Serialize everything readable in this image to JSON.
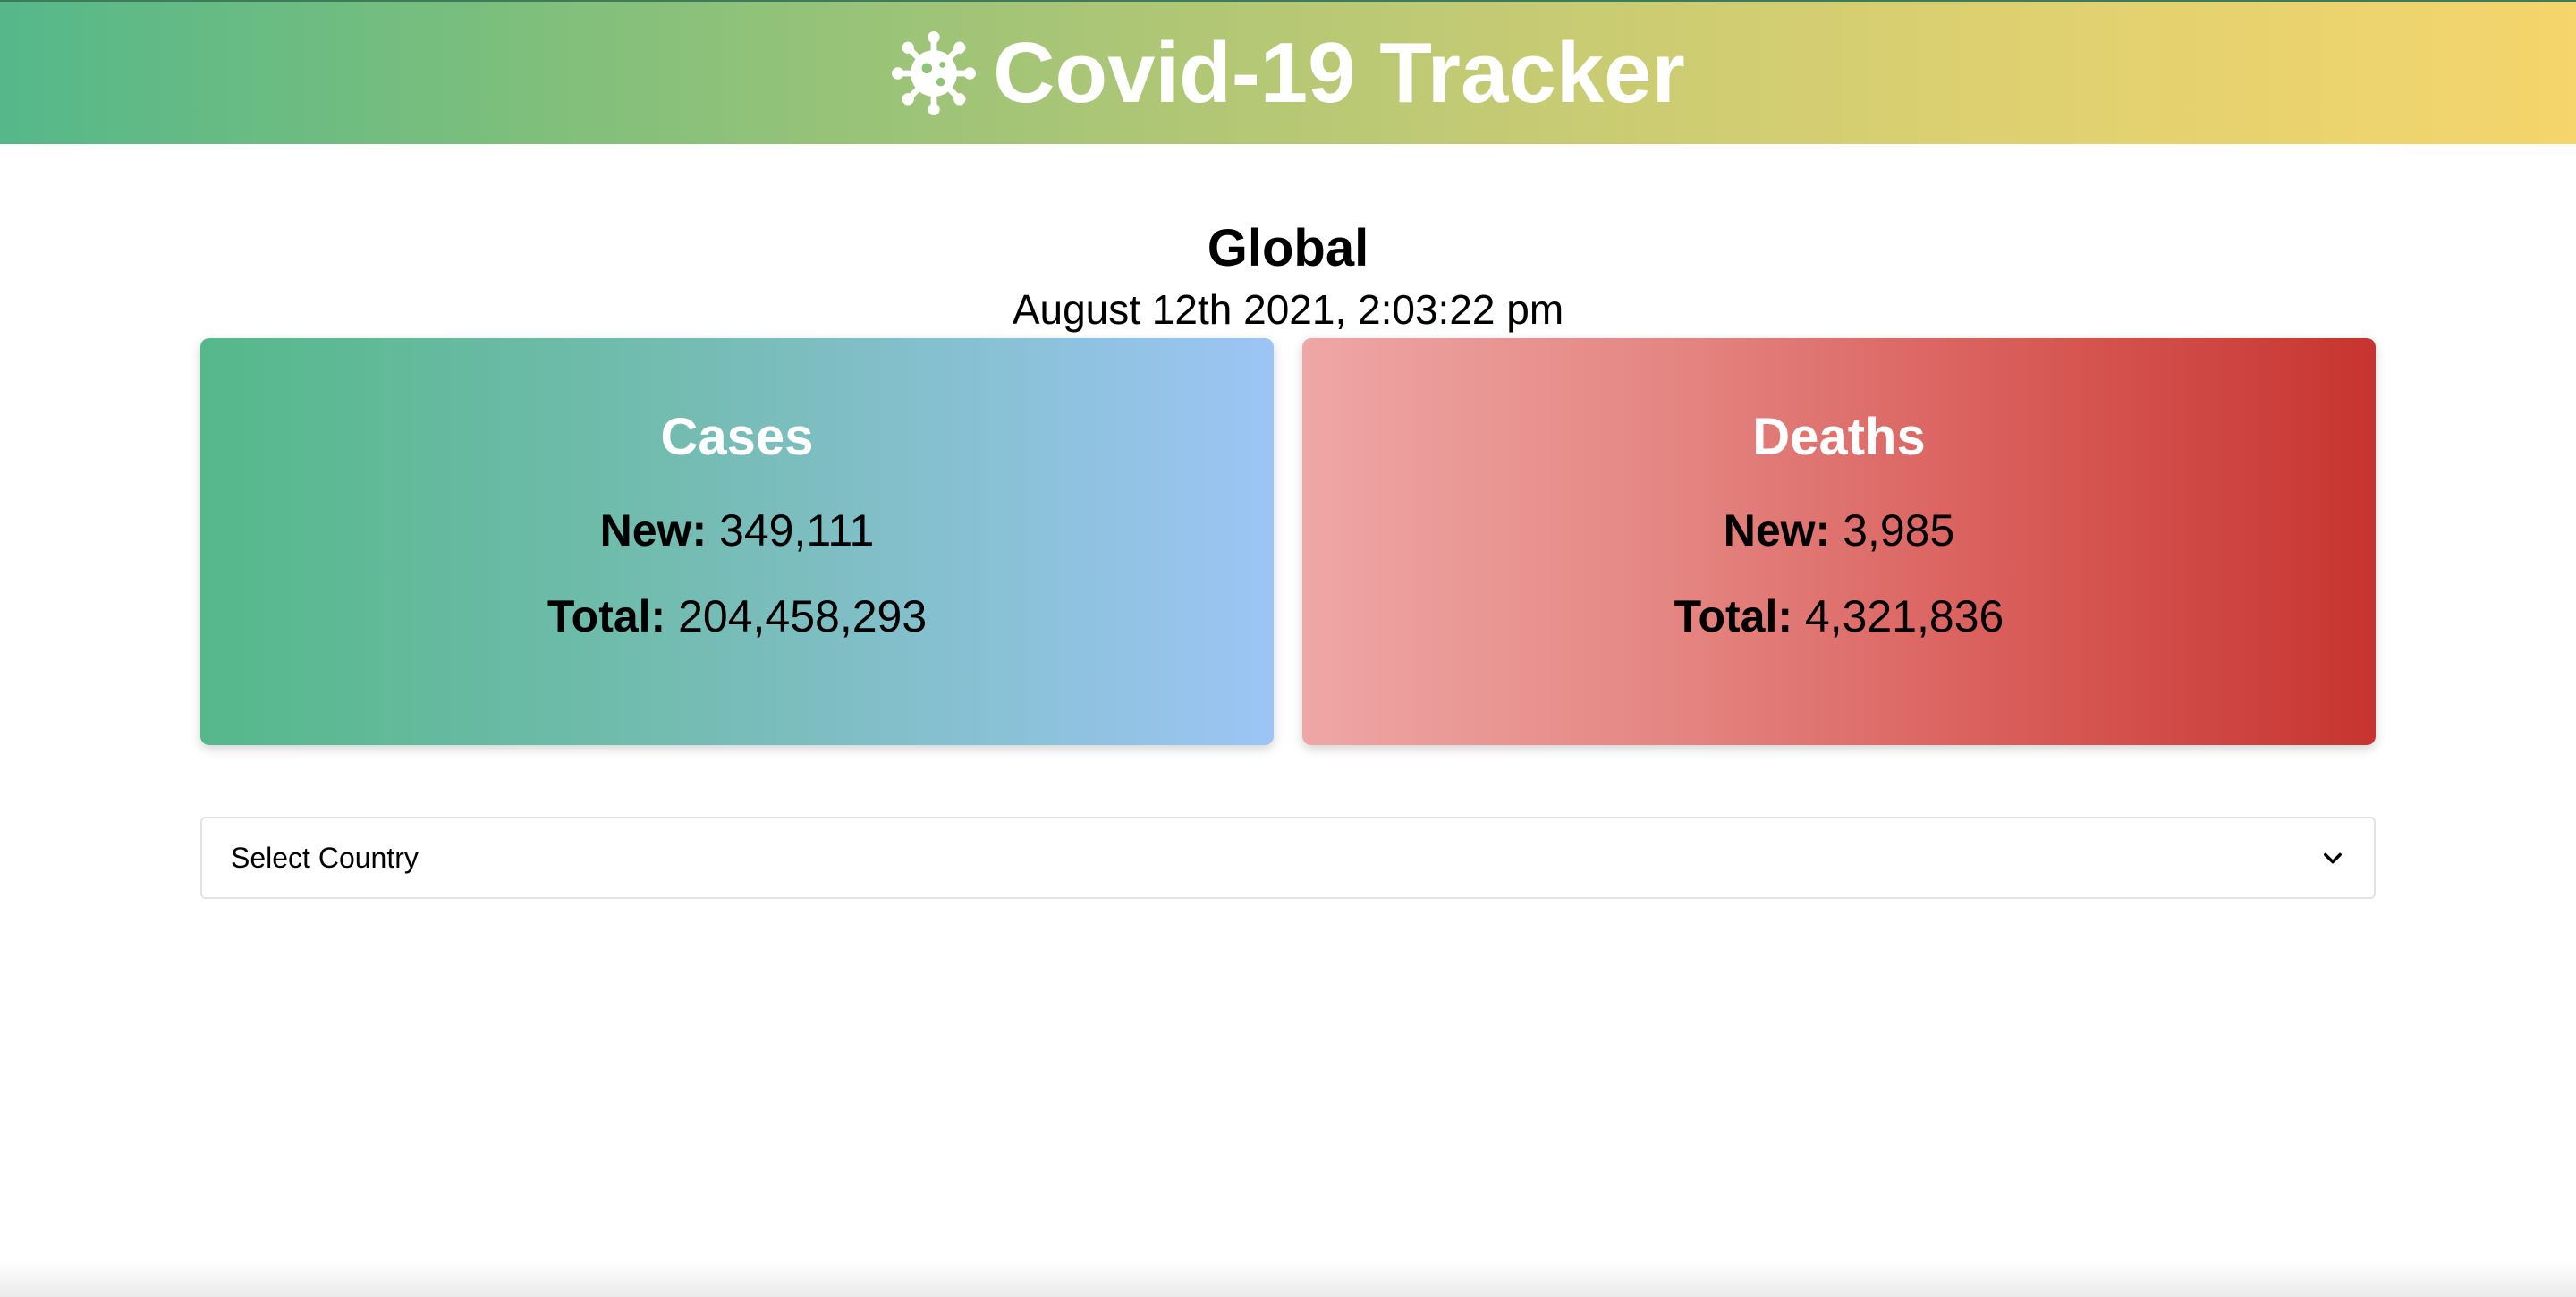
{
  "header": {
    "title": "Covid-19 Tracker",
    "icon": "virus-icon",
    "gradient": [
      "#55b88a",
      "#f5d56c"
    ]
  },
  "region": {
    "name": "Global",
    "updated": "August 12th 2021, 2:03:22 pm"
  },
  "cards": {
    "cases": {
      "title": "Cases",
      "new_label": "New:",
      "new_value": "349,111",
      "total_label": "Total:",
      "total_value": "204,458,293",
      "gradient": [
        "#55b88a",
        "#9cc5f5"
      ]
    },
    "deaths": {
      "title": "Deaths",
      "new_label": "New:",
      "new_value": "3,985",
      "total_label": "Total:",
      "total_value": "4,321,836",
      "gradient": [
        "#eea7a6",
        "#c7342f"
      ]
    }
  },
  "country_select": {
    "selected": "Select Country",
    "icon": "chevron-down-icon"
  }
}
